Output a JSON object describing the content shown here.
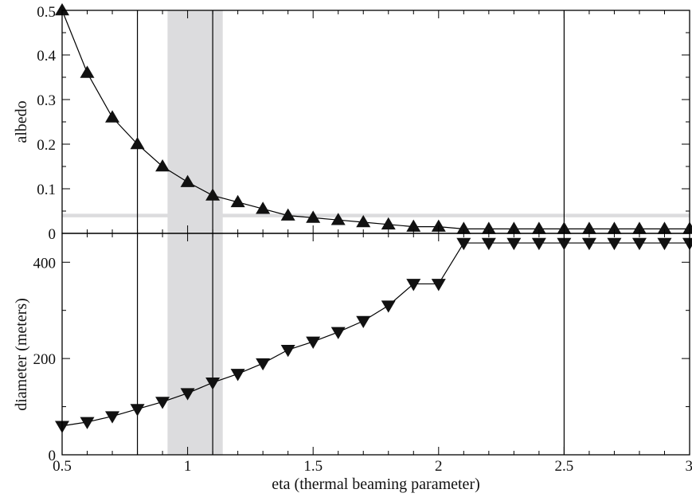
{
  "chart_data": [
    {
      "type": "line",
      "panel": "top",
      "ylabel": "albedo",
      "xlabel": "",
      "xlim": [
        0.5,
        3.0
      ],
      "ylim": [
        0,
        0.5
      ],
      "yticks": [
        "0",
        "0.1",
        "0.2",
        "0.3",
        "0.4",
        "0.5"
      ],
      "yticks_values": [
        0,
        0.1,
        0.2,
        0.3,
        0.4,
        0.5
      ],
      "marker": "triangle-up",
      "x": [
        0.5,
        0.6,
        0.7,
        0.8,
        0.9,
        1.0,
        1.1,
        1.2,
        1.3,
        1.4,
        1.5,
        1.6,
        1.7,
        1.8,
        1.9,
        2.0,
        2.1,
        2.2,
        2.3,
        2.4,
        2.5,
        2.6,
        2.7,
        2.8,
        2.9,
        3.0
      ],
      "values": [
        0.5,
        0.36,
        0.26,
        0.2,
        0.15,
        0.115,
        0.085,
        0.07,
        0.055,
        0.04,
        0.035,
        0.03,
        0.025,
        0.02,
        0.015,
        0.015,
        0.01,
        0.01,
        0.01,
        0.01,
        0.01,
        0.01,
        0.01,
        0.01,
        0.01,
        0.01
      ],
      "reference_band_y": [
        0.036,
        0.044
      ]
    },
    {
      "type": "line",
      "panel": "bottom",
      "ylabel": "diameter (meters)",
      "xlabel": "eta (thermal beaming parameter)",
      "xlim": [
        0.5,
        3.0
      ],
      "ylim": [
        0,
        460
      ],
      "yticks": [
        "0",
        "200",
        "400"
      ],
      "yticks_values": [
        0,
        200,
        400
      ],
      "marker": "triangle-down",
      "x": [
        0.5,
        0.6,
        0.7,
        0.8,
        0.9,
        1.0,
        1.1,
        1.2,
        1.3,
        1.4,
        1.5,
        1.6,
        1.7,
        1.8,
        1.9,
        2.0,
        2.1,
        2.2,
        2.3,
        2.4,
        2.5,
        2.6,
        2.7,
        2.8,
        2.9,
        3.0
      ],
      "values": [
        60,
        68,
        80,
        95,
        110,
        128,
        150,
        168,
        190,
        218,
        235,
        255,
        278,
        310,
        355,
        355,
        440,
        440,
        440,
        440,
        440,
        440,
        440,
        440,
        440,
        440
      ]
    }
  ],
  "x_axis": {
    "ticks": [
      "0.5",
      "1",
      "1.5",
      "2",
      "2.5",
      "3"
    ],
    "ticks_values": [
      0.5,
      1.0,
      1.5,
      2.0,
      2.5,
      3.0
    ],
    "minor_step": 0.1
  },
  "vertical_lines_x": [
    0.8,
    1.1,
    2.5
  ],
  "shaded_band_x": [
    0.92,
    1.14
  ],
  "colors": {
    "line": "#000000",
    "marker": "#111111",
    "band": "#dcdcde",
    "frame": "#000000"
  }
}
